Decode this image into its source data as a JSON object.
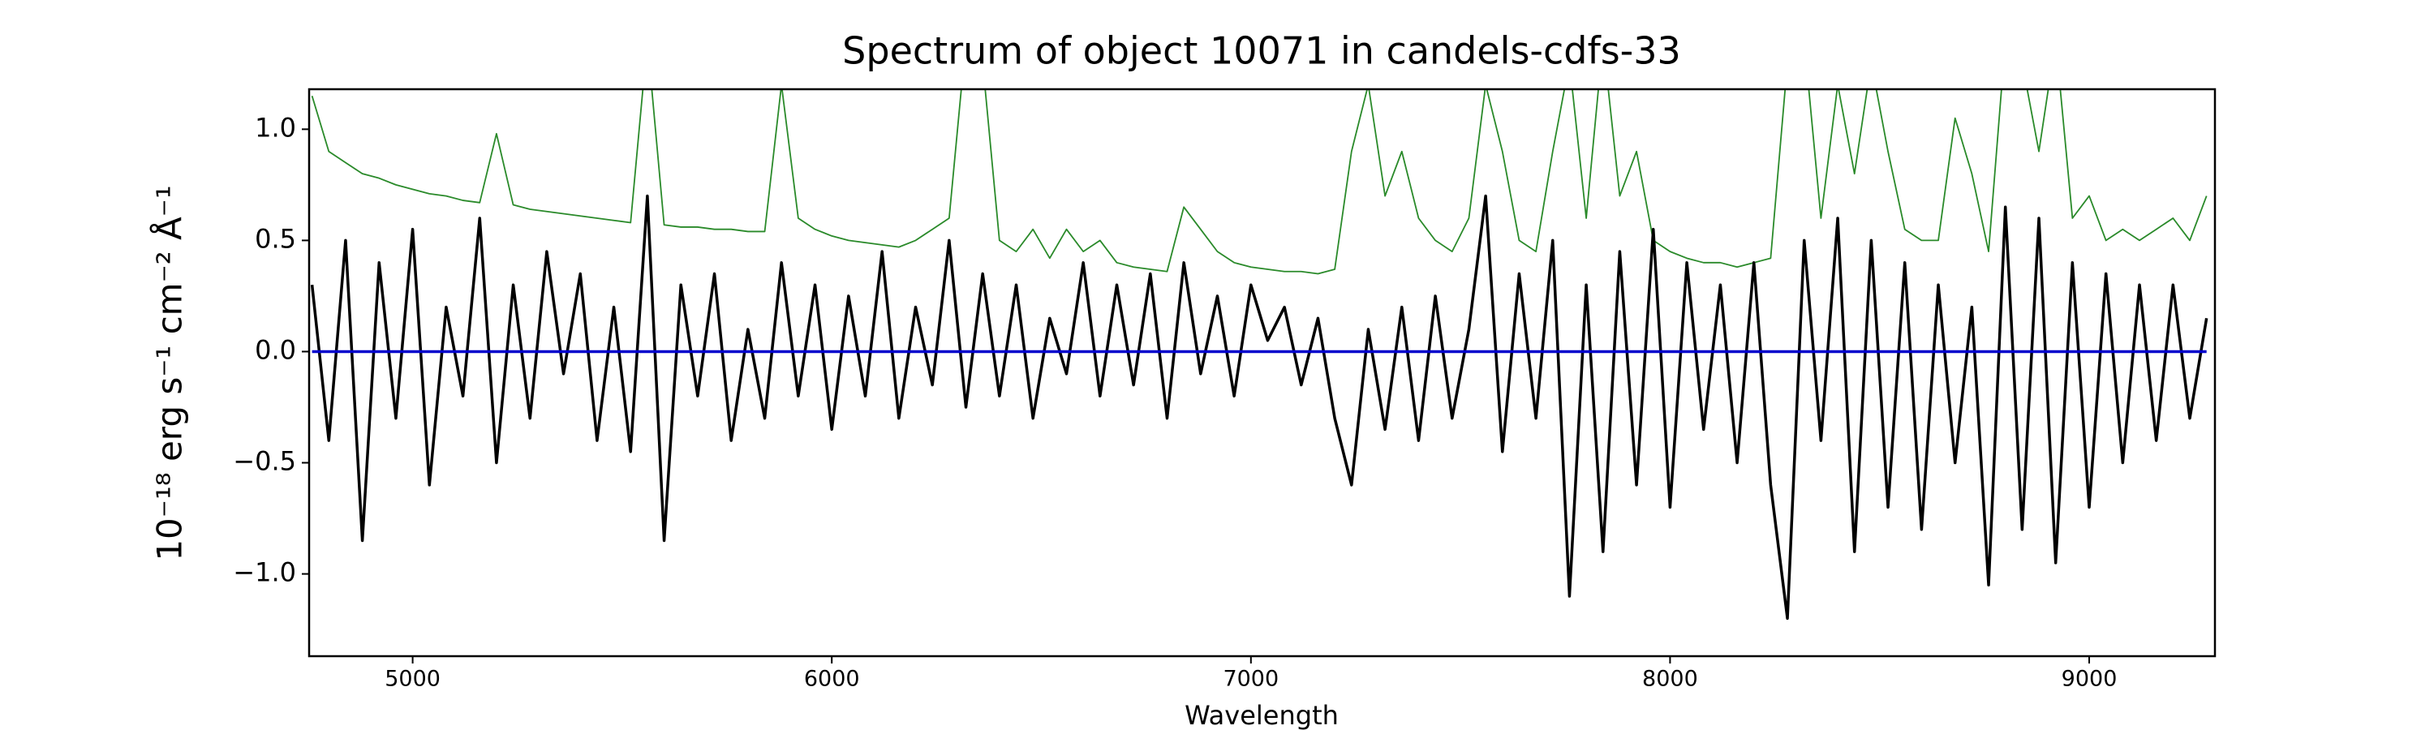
{
  "chart_data": {
    "type": "line",
    "title": "Spectrum of object 10071 in candels-cdfs-33",
    "xlabel": "Wavelength",
    "ylabel": "10⁻¹⁸ erg s⁻¹ cm⁻² Å⁻¹",
    "xlim": [
      4753,
      9300
    ],
    "ylim": [
      -1.37,
      1.18
    ],
    "xticks": [
      5000,
      6000,
      7000,
      8000,
      9000
    ],
    "yticks": [
      {
        "value": -1,
        "label": "−1.0"
      },
      {
        "value": -0.5,
        "label": "−0.5"
      },
      {
        "value": 0,
        "label": "0.0"
      },
      {
        "value": 0.5,
        "label": "0.5"
      },
      {
        "value": 1,
        "label": "1.0"
      }
    ],
    "x": [
      4760,
      4800,
      4840,
      4880,
      4920,
      4960,
      5000,
      5040,
      5080,
      5120,
      5160,
      5200,
      5240,
      5280,
      5320,
      5360,
      5400,
      5440,
      5480,
      5520,
      5560,
      5600,
      5640,
      5680,
      5720,
      5760,
      5800,
      5840,
      5880,
      5920,
      5960,
      6000,
      6040,
      6080,
      6120,
      6160,
      6200,
      6240,
      6280,
      6320,
      6360,
      6400,
      6440,
      6480,
      6520,
      6560,
      6600,
      6640,
      6680,
      6720,
      6760,
      6800,
      6840,
      6880,
      6920,
      6960,
      7000,
      7040,
      7080,
      7120,
      7160,
      7200,
      7240,
      7280,
      7320,
      7360,
      7400,
      7440,
      7480,
      7520,
      7560,
      7600,
      7640,
      7680,
      7720,
      7760,
      7800,
      7840,
      7880,
      7920,
      7960,
      8000,
      8040,
      8080,
      8120,
      8160,
      8200,
      8240,
      8280,
      8320,
      8360,
      8400,
      8440,
      8480,
      8520,
      8560,
      8600,
      8640,
      8680,
      8720,
      8760,
      8800,
      8840,
      8880,
      8920,
      8960,
      9000,
      9040,
      9080,
      9120,
      9160,
      9200,
      9240,
      9280
    ],
    "series": [
      {
        "color": "#2a8a2a",
        "width": 1.8,
        "values": [
          1.15,
          0.9,
          0.85,
          0.8,
          0.78,
          0.75,
          0.73,
          0.71,
          0.7,
          0.68,
          0.67,
          0.98,
          0.66,
          0.64,
          0.63,
          0.62,
          0.61,
          0.6,
          0.59,
          0.58,
          1.4,
          0.57,
          0.56,
          0.56,
          0.55,
          0.55,
          0.54,
          0.54,
          1.2,
          0.6,
          0.55,
          0.52,
          0.5,
          0.49,
          0.48,
          0.47,
          0.5,
          0.55,
          0.6,
          1.4,
          1.3,
          0.5,
          0.45,
          0.55,
          0.42,
          0.55,
          0.45,
          0.5,
          0.4,
          0.38,
          0.37,
          0.36,
          0.65,
          0.55,
          0.45,
          0.4,
          0.38,
          0.37,
          0.36,
          0.36,
          0.35,
          0.37,
          0.9,
          1.2,
          0.7,
          0.9,
          0.6,
          0.5,
          0.45,
          0.6,
          1.2,
          0.9,
          0.5,
          0.45,
          0.9,
          1.3,
          0.6,
          1.4,
          0.7,
          0.9,
          0.5,
          0.45,
          0.42,
          0.4,
          0.4,
          0.38,
          0.4,
          0.42,
          1.3,
          1.4,
          0.6,
          1.2,
          0.8,
          1.3,
          0.9,
          0.55,
          0.5,
          0.5,
          1.05,
          0.8,
          0.45,
          1.4,
          1.3,
          0.9,
          1.4,
          0.6,
          0.7,
          0.5,
          0.55,
          0.5,
          0.55,
          0.6,
          0.5,
          0.7
        ]
      },
      {
        "color": "#000000",
        "width": 3.5,
        "values": [
          0.3,
          -0.4,
          0.5,
          -0.85,
          0.4,
          -0.3,
          0.55,
          -0.6,
          0.2,
          -0.2,
          0.6,
          -0.5,
          0.3,
          -0.3,
          0.45,
          -0.1,
          0.35,
          -0.4,
          0.2,
          -0.45,
          0.7,
          -0.85,
          0.3,
          -0.2,
          0.35,
          -0.4,
          0.1,
          -0.3,
          0.4,
          -0.2,
          0.3,
          -0.35,
          0.25,
          -0.2,
          0.45,
          -0.3,
          0.2,
          -0.15,
          0.5,
          -0.25,
          0.35,
          -0.2,
          0.3,
          -0.3,
          0.15,
          -0.1,
          0.4,
          -0.2,
          0.3,
          -0.15,
          0.35,
          -0.3,
          0.4,
          -0.1,
          0.25,
          -0.2,
          0.3,
          0.05,
          0.2,
          -0.15,
          0.15,
          -0.3,
          -0.6,
          0.1,
          -0.35,
          0.2,
          -0.4,
          0.25,
          -0.3,
          0.1,
          0.7,
          -0.45,
          0.35,
          -0.3,
          0.5,
          -1.1,
          0.3,
          -0.9,
          0.45,
          -0.6,
          0.55,
          -0.7,
          0.4,
          -0.35,
          0.3,
          -0.5,
          0.4,
          -0.6,
          -1.2,
          0.5,
          -0.4,
          0.6,
          -0.9,
          0.5,
          -0.7,
          0.4,
          -0.8,
          0.3,
          -0.5,
          0.2,
          -1.05,
          0.65,
          -0.8,
          0.6,
          -0.95,
          0.4,
          -0.7,
          0.35,
          -0.5,
          0.3,
          -0.4,
          0.3,
          -0.3,
          0.15
        ]
      },
      {
        "color": "#0000cc",
        "width": 3.5,
        "values": [
          0,
          0,
          0,
          0,
          0,
          0,
          0,
          0,
          0,
          0,
          0,
          0,
          0,
          0,
          0,
          0,
          0,
          0,
          0,
          0,
          0,
          0,
          0,
          0,
          0,
          0,
          0,
          0,
          0,
          0,
          0,
          0,
          0,
          0,
          0,
          0,
          0,
          0,
          0,
          0,
          0,
          0,
          0,
          0,
          0,
          0,
          0,
          0,
          0,
          0,
          0,
          0,
          0,
          0,
          0,
          0,
          0,
          0,
          0,
          0,
          0,
          0,
          0,
          0,
          0,
          0,
          0,
          0,
          0,
          0,
          0,
          0,
          0,
          0,
          0,
          0,
          0,
          0,
          0,
          0,
          0,
          0,
          0,
          0,
          0,
          0,
          0,
          0,
          0,
          0,
          0,
          0,
          0,
          0,
          0,
          0,
          0,
          0,
          0,
          0,
          0,
          0,
          0,
          0,
          0,
          0,
          0,
          0,
          0,
          0,
          0,
          0,
          0,
          0
        ]
      }
    ]
  }
}
